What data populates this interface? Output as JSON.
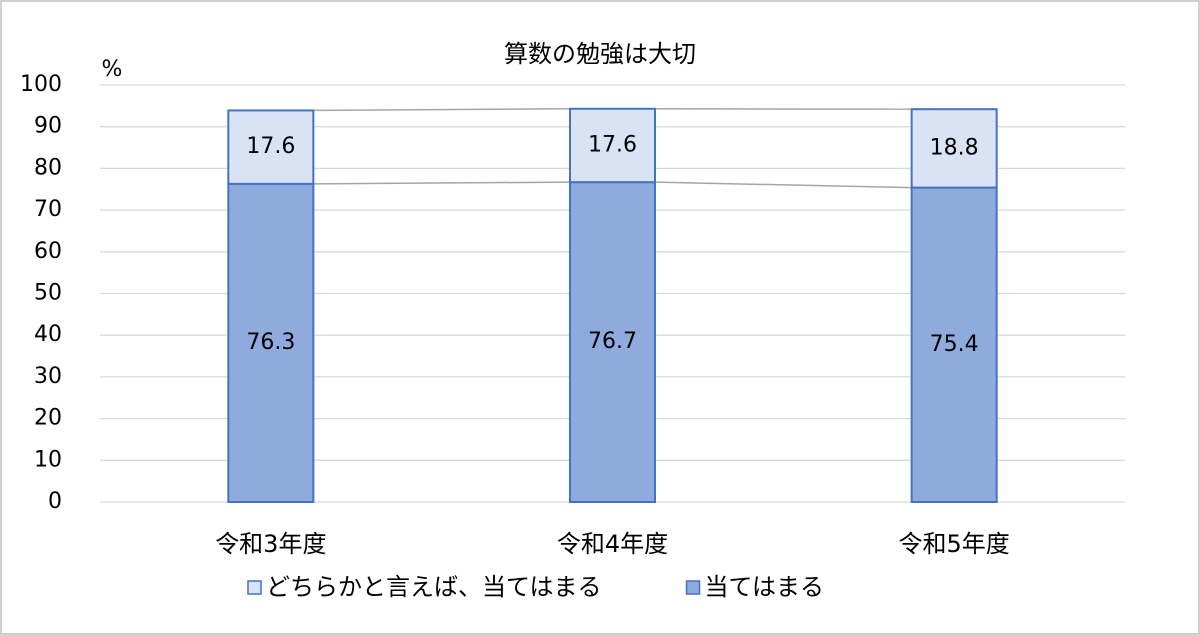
{
  "chart_data": {
    "type": "stacked-bar",
    "title": "算数の勉強は大切",
    "y_label": "%",
    "categories": [
      "令和3年度",
      "令和4年度",
      "令和5年度"
    ],
    "series": [
      {
        "name": "当てはまる",
        "color": "#8faadc",
        "values": [
          76.3,
          76.7,
          75.4
        ]
      },
      {
        "name": "どちらかと言えば、当てはまる",
        "color": "#dae3f3",
        "values": [
          17.6,
          17.6,
          18.8
        ]
      }
    ],
    "ylim": [
      0,
      100
    ],
    "yticks": [
      0,
      10,
      20,
      30,
      40,
      50,
      60,
      70,
      80,
      90,
      100
    ],
    "grid": true
  }
}
